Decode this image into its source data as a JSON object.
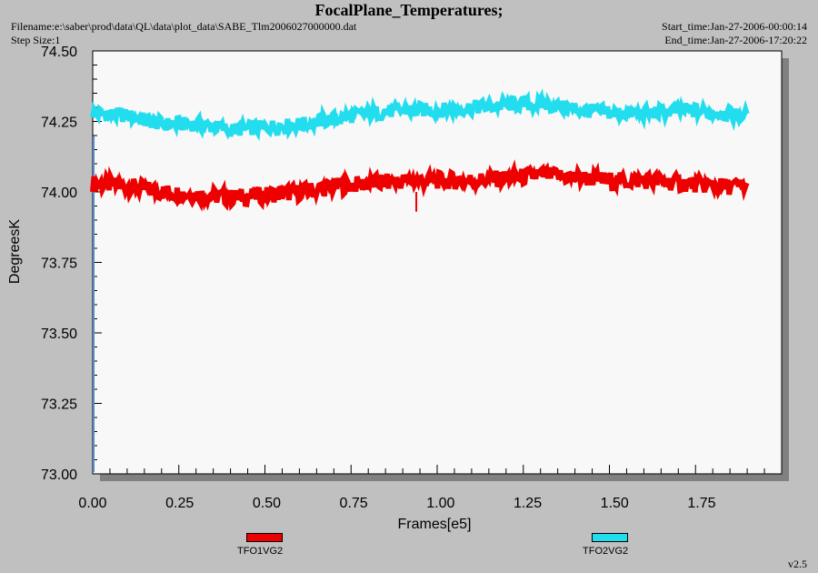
{
  "header": {
    "title": "FocalPlane_Temperatures;",
    "filename": "Filename:e:\\saber\\prod\\data\\QL\\data\\plot_data\\SABE_Tlm2006027000000.dat",
    "step_size": "Step Size:1",
    "start_time": "Start_time:Jan-27-2006-00:00:14",
    "end_time": "End_time:Jan-27-2006-17:20:22"
  },
  "version": "v2.5",
  "colors": {
    "background": "#c0c0c0",
    "plot_area": "#f8f8f8",
    "shadow": "#808080",
    "series_1": "#ee0000",
    "series_2": "#22ddee"
  },
  "chart_data": {
    "type": "line",
    "title": "FocalPlane_Temperatures;",
    "xlabel": "Frames[e5]",
    "ylabel": "DegreesK",
    "xlim": [
      0,
      1.98
    ],
    "ylim": [
      73.0,
      74.5
    ],
    "x_ticks": [
      "0.00",
      "0.25",
      "0.50",
      "0.75",
      "1.00",
      "1.25",
      "1.50",
      "1.75"
    ],
    "y_ticks": [
      "73.00",
      "73.25",
      "73.50",
      "73.75",
      "74.00",
      "74.25",
      "74.50"
    ],
    "grid": false,
    "legend_position": "bottom",
    "series": [
      {
        "name": "TFO1VG2",
        "color": "#ee0000",
        "noise_band": 0.06,
        "x": [
          0.0,
          0.1,
          0.2,
          0.3,
          0.4,
          0.5,
          0.6,
          0.7,
          0.8,
          0.9,
          1.0,
          1.1,
          1.2,
          1.3,
          1.4,
          1.5,
          1.6,
          1.7,
          1.8,
          1.88
        ],
        "y": [
          74.03,
          74.02,
          74.0,
          73.99,
          73.98,
          73.99,
          74.0,
          74.02,
          74.03,
          74.04,
          74.04,
          74.04,
          74.05,
          74.06,
          74.05,
          74.04,
          74.04,
          74.03,
          74.02,
          74.02
        ]
      },
      {
        "name": "TFO2VG2",
        "color": "#22ddee",
        "noise_band": 0.05,
        "x": [
          0.0,
          0.1,
          0.2,
          0.3,
          0.4,
          0.5,
          0.6,
          0.7,
          0.8,
          0.9,
          1.0,
          1.1,
          1.2,
          1.3,
          1.4,
          1.5,
          1.6,
          1.7,
          1.8,
          1.88
        ],
        "y": [
          74.28,
          74.27,
          74.24,
          74.24,
          74.22,
          74.23,
          74.24,
          74.26,
          74.28,
          74.29,
          74.29,
          74.3,
          74.31,
          74.31,
          74.29,
          74.28,
          74.28,
          74.29,
          74.28,
          74.27
        ]
      }
    ],
    "annotations": [
      {
        "series": "TFO1VG2",
        "type": "spike",
        "x": 0.93,
        "y": 73.93
      }
    ]
  }
}
